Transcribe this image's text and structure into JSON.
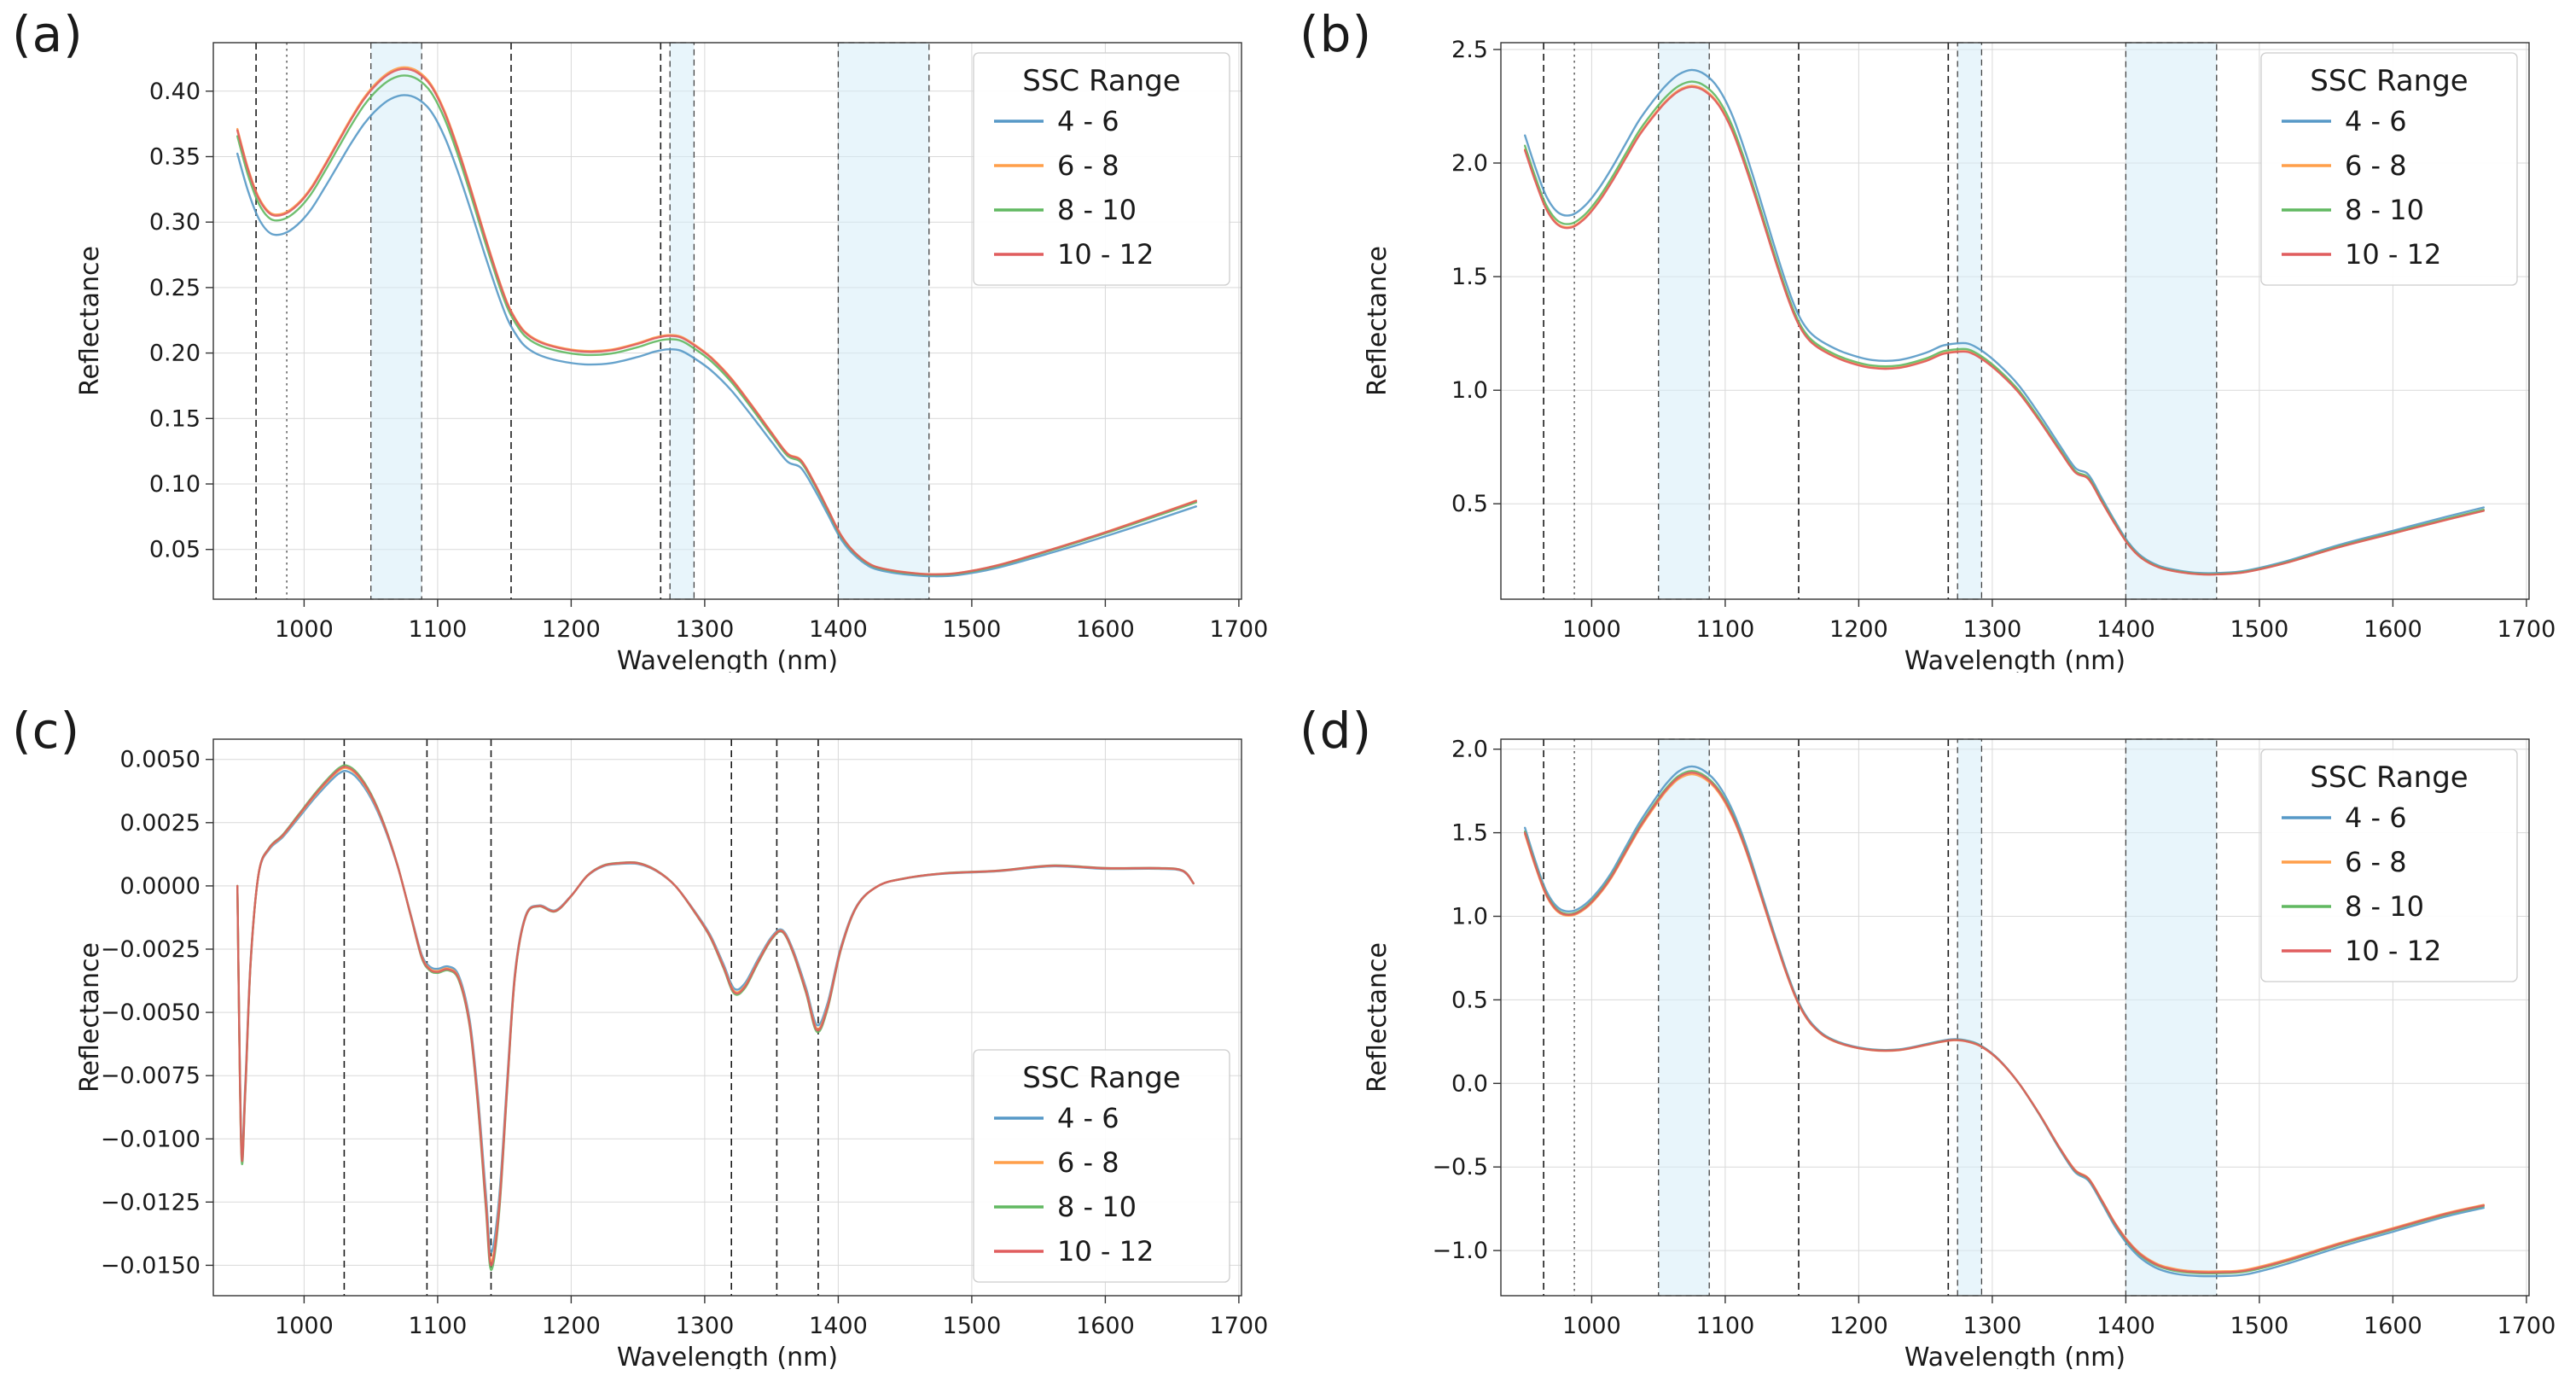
{
  "figure": {
    "background": "#ffffff",
    "axis_color": "#333333",
    "grid_color": "#d9d9d9",
    "text_color": "#1a1a1a",
    "band_color": "#d6ecf8"
  },
  "panels": [
    {
      "label": "(a)"
    },
    {
      "label": "(b)"
    },
    {
      "label": "(c)"
    },
    {
      "label": "(d)"
    }
  ],
  "chart_data": [
    {
      "type": "line",
      "title": "",
      "xlabel": "Wavelength (nm)",
      "ylabel": "Reflectance",
      "xlim": [
        932,
        1702
      ],
      "ylim": [
        0.012,
        0.437
      ],
      "xticks": [
        1000,
        1100,
        1200,
        1300,
        1400,
        1500,
        1600,
        1700
      ],
      "yticks": [
        0.05,
        0.1,
        0.15,
        0.2,
        0.25,
        0.3,
        0.35,
        0.4
      ],
      "ydecimals": 2,
      "grid": true,
      "legend_title": "SSC Range",
      "legend_position": "top-right",
      "x": [
        950,
        958,
        966,
        975,
        985,
        995,
        1005,
        1015,
        1025,
        1035,
        1045,
        1055,
        1065,
        1075,
        1085,
        1095,
        1105,
        1115,
        1125,
        1135,
        1145,
        1152,
        1158,
        1165,
        1175,
        1190,
        1210,
        1230,
        1250,
        1262,
        1272,
        1282,
        1292,
        1305,
        1320,
        1335,
        1350,
        1362,
        1372,
        1382,
        1392,
        1402,
        1412,
        1425,
        1440,
        1455,
        1470,
        1490,
        1520,
        1560,
        1600,
        1640,
        1668
      ],
      "base_y": [
        0.37,
        0.34,
        0.318,
        0.306,
        0.306,
        0.313,
        0.325,
        0.342,
        0.36,
        0.378,
        0.394,
        0.406,
        0.414,
        0.417,
        0.414,
        0.404,
        0.384,
        0.356,
        0.324,
        0.29,
        0.258,
        0.238,
        0.226,
        0.216,
        0.209,
        0.204,
        0.201,
        0.202,
        0.207,
        0.211,
        0.213,
        0.212,
        0.206,
        0.196,
        0.18,
        0.16,
        0.139,
        0.123,
        0.118,
        0.101,
        0.081,
        0.061,
        0.048,
        0.038,
        0.034,
        0.032,
        0.031,
        0.032,
        0.038,
        0.05,
        0.063,
        0.077,
        0.087
      ],
      "series": [
        {
          "name": "4 - 6",
          "color": "#5799c7",
          "scale": 0.952
        },
        {
          "name": "6 - 8",
          "color": "#ff9f4a",
          "scale": 1.003
        },
        {
          "name": "8 - 10",
          "color": "#61b861",
          "scale": 0.988
        },
        {
          "name": "10 - 12",
          "color": "#e05d5e",
          "scale": 1.0
        }
      ],
      "vlines": [
        {
          "x": 964,
          "style": "dashed"
        },
        {
          "x": 987,
          "style": "dotted"
        },
        {
          "x": 1155,
          "style": "dashed"
        },
        {
          "x": 1267,
          "style": "dashed"
        }
      ],
      "bands": [
        {
          "x0": 1050,
          "x1": 1088
        },
        {
          "x0": 1274,
          "x1": 1292
        },
        {
          "x0": 1400,
          "x1": 1468
        }
      ]
    },
    {
      "type": "line",
      "title": "",
      "xlabel": "Wavelength (nm)",
      "ylabel": "Reflectance",
      "xlim": [
        932,
        1702
      ],
      "ylim": [
        0.08,
        2.53
      ],
      "xticks": [
        1000,
        1100,
        1200,
        1300,
        1400,
        1500,
        1600,
        1700
      ],
      "yticks": [
        0.5,
        1.0,
        1.5,
        2.0,
        2.5
      ],
      "ydecimals": 1,
      "grid": true,
      "legend_title": "SSC Range",
      "legend_position": "top-right",
      "x": [
        950,
        958,
        966,
        975,
        985,
        995,
        1005,
        1015,
        1025,
        1035,
        1045,
        1055,
        1065,
        1075,
        1085,
        1095,
        1105,
        1115,
        1125,
        1135,
        1145,
        1152,
        1158,
        1165,
        1175,
        1190,
        1210,
        1230,
        1250,
        1262,
        1272,
        1282,
        1292,
        1305,
        1320,
        1335,
        1350,
        1362,
        1372,
        1382,
        1392,
        1402,
        1412,
        1425,
        1440,
        1455,
        1470,
        1490,
        1520,
        1560,
        1600,
        1640,
        1668
      ],
      "base_y": [
        2.06,
        1.92,
        1.8,
        1.73,
        1.72,
        1.76,
        1.83,
        1.92,
        2.02,
        2.12,
        2.2,
        2.27,
        2.32,
        2.34,
        2.32,
        2.26,
        2.15,
        1.99,
        1.81,
        1.62,
        1.44,
        1.33,
        1.26,
        1.21,
        1.17,
        1.13,
        1.1,
        1.1,
        1.13,
        1.16,
        1.17,
        1.17,
        1.14,
        1.08,
        0.99,
        0.87,
        0.74,
        0.64,
        0.61,
        0.51,
        0.41,
        0.32,
        0.26,
        0.22,
        0.2,
        0.19,
        0.19,
        0.2,
        0.24,
        0.31,
        0.37,
        0.43,
        0.47
      ],
      "series": [
        {
          "name": "4 - 6",
          "color": "#5799c7",
          "scale": 1.03
        },
        {
          "name": "6 - 8",
          "color": "#ff9f4a",
          "scale": 1.0
        },
        {
          "name": "8 - 10",
          "color": "#61b861",
          "scale": 1.008
        },
        {
          "name": "10 - 12",
          "color": "#e05d5e",
          "scale": 0.998
        }
      ],
      "vlines": [
        {
          "x": 964,
          "style": "dashed"
        },
        {
          "x": 987,
          "style": "dotted"
        },
        {
          "x": 1155,
          "style": "dashed"
        },
        {
          "x": 1267,
          "style": "dashed"
        }
      ],
      "bands": [
        {
          "x0": 1050,
          "x1": 1088
        },
        {
          "x0": 1274,
          "x1": 1292
        },
        {
          "x0": 1400,
          "x1": 1468
        }
      ]
    },
    {
      "type": "line",
      "title": "",
      "xlabel": "Wavelength (nm)",
      "ylabel": "Reflectance",
      "xlim": [
        932,
        1702
      ],
      "ylim": [
        -0.0162,
        0.0058
      ],
      "xticks": [
        1000,
        1100,
        1200,
        1300,
        1400,
        1500,
        1600,
        1700
      ],
      "yticks": [
        0.005,
        0.0025,
        0.0,
        -0.0025,
        -0.005,
        -0.0075,
        -0.01,
        -0.0125,
        -0.015
      ],
      "ydecimals": 4,
      "grid": true,
      "legend_title": "SSC Range",
      "legend_position": "bottom-right",
      "x": [
        950,
        953,
        956,
        960,
        966,
        974,
        984,
        996,
        1008,
        1018,
        1026,
        1032,
        1040,
        1050,
        1060,
        1070,
        1080,
        1088,
        1094,
        1100,
        1108,
        1116,
        1124,
        1130,
        1136,
        1140,
        1146,
        1152,
        1158,
        1166,
        1176,
        1188,
        1200,
        1212,
        1224,
        1236,
        1250,
        1264,
        1278,
        1292,
        1304,
        1314,
        1322,
        1330,
        1340,
        1350,
        1358,
        1366,
        1376,
        1384,
        1392,
        1402,
        1414,
        1430,
        1450,
        1480,
        1520,
        1560,
        1600,
        1640,
        1658,
        1666
      ],
      "base_y": [
        0.0,
        -0.0105,
        -0.008,
        -0.003,
        0.0005,
        0.0015,
        0.002,
        0.0028,
        0.0036,
        0.0042,
        0.0046,
        0.0047,
        0.0044,
        0.0036,
        0.0024,
        0.0008,
        -0.0012,
        -0.0028,
        -0.0033,
        -0.0034,
        -0.0033,
        -0.0037,
        -0.0055,
        -0.0085,
        -0.0125,
        -0.015,
        -0.0128,
        -0.008,
        -0.0035,
        -0.0012,
        -0.0008,
        -0.001,
        -0.0004,
        0.0004,
        0.0008,
        0.0009,
        0.0009,
        0.0006,
        0.0,
        -0.001,
        -0.002,
        -0.0032,
        -0.0042,
        -0.004,
        -0.003,
        -0.0021,
        -0.0018,
        -0.0026,
        -0.0042,
        -0.0057,
        -0.0048,
        -0.0025,
        -0.0008,
        0.0,
        0.0003,
        0.0005,
        0.0006,
        0.0008,
        0.0007,
        0.0007,
        0.0006,
        0.0001
      ],
      "series": [
        {
          "name": "4 - 6",
          "color": "#5799c7",
          "scale": 0.965
        },
        {
          "name": "6 - 8",
          "color": "#ff9f4a",
          "scale": 0.99
        },
        {
          "name": "8 - 10",
          "color": "#61b861",
          "scale": 1.012
        },
        {
          "name": "10 - 12",
          "color": "#e05d5e",
          "scale": 1.0
        }
      ],
      "vlines": [
        {
          "x": 1030,
          "style": "dashed"
        },
        {
          "x": 1092,
          "style": "dashed"
        },
        {
          "x": 1140,
          "style": "dashed"
        },
        {
          "x": 1320,
          "style": "dashed"
        },
        {
          "x": 1354,
          "style": "dashed"
        },
        {
          "x": 1385,
          "style": "dashed"
        }
      ],
      "bands": []
    },
    {
      "type": "line",
      "title": "",
      "xlabel": "Wavelength (nm)",
      "ylabel": "Reflectance",
      "xlim": [
        932,
        1702
      ],
      "ylim": [
        -1.27,
        2.06
      ],
      "xticks": [
        1000,
        1100,
        1200,
        1300,
        1400,
        1500,
        1600,
        1700
      ],
      "yticks": [
        -1.0,
        -0.5,
        0.0,
        0.5,
        1.0,
        1.5,
        2.0
      ],
      "ydecimals": 1,
      "grid": true,
      "legend_title": "SSC Range",
      "legend_position": "top-right",
      "x": [
        950,
        958,
        966,
        975,
        985,
        995,
        1005,
        1015,
        1025,
        1035,
        1045,
        1055,
        1065,
        1075,
        1085,
        1095,
        1105,
        1115,
        1125,
        1135,
        1145,
        1152,
        1158,
        1165,
        1175,
        1190,
        1210,
        1230,
        1250,
        1262,
        1272,
        1282,
        1292,
        1305,
        1320,
        1335,
        1350,
        1362,
        1372,
        1382,
        1392,
        1402,
        1412,
        1425,
        1440,
        1455,
        1470,
        1490,
        1520,
        1560,
        1600,
        1640,
        1668
      ],
      "base_y": [
        1.5,
        1.3,
        1.13,
        1.03,
        1.01,
        1.05,
        1.13,
        1.24,
        1.38,
        1.52,
        1.64,
        1.75,
        1.83,
        1.86,
        1.83,
        1.75,
        1.61,
        1.41,
        1.17,
        0.92,
        0.68,
        0.53,
        0.43,
        0.35,
        0.28,
        0.23,
        0.2,
        0.2,
        0.23,
        0.25,
        0.26,
        0.25,
        0.22,
        0.14,
        0.0,
        -0.18,
        -0.38,
        -0.52,
        -0.57,
        -0.7,
        -0.84,
        -0.95,
        -1.03,
        -1.09,
        -1.12,
        -1.13,
        -1.13,
        -1.12,
        -1.06,
        -0.96,
        -0.87,
        -0.78,
        -0.73
      ],
      "series": [
        {
          "name": "4 - 6",
          "color": "#5799c7",
          "scale": 1.02
        },
        {
          "name": "6 - 8",
          "color": "#ff9f4a",
          "scale": 0.995
        },
        {
          "name": "8 - 10",
          "color": "#61b861",
          "scale": 1.005
        },
        {
          "name": "10 - 12",
          "color": "#e05d5e",
          "scale": 1.0
        }
      ],
      "vlines": [
        {
          "x": 964,
          "style": "dashed"
        },
        {
          "x": 987,
          "style": "dotted"
        },
        {
          "x": 1155,
          "style": "dashed"
        },
        {
          "x": 1267,
          "style": "dashed"
        }
      ],
      "bands": [
        {
          "x0": 1050,
          "x1": 1088
        },
        {
          "x0": 1274,
          "x1": 1292
        },
        {
          "x0": 1400,
          "x1": 1468
        }
      ]
    }
  ]
}
